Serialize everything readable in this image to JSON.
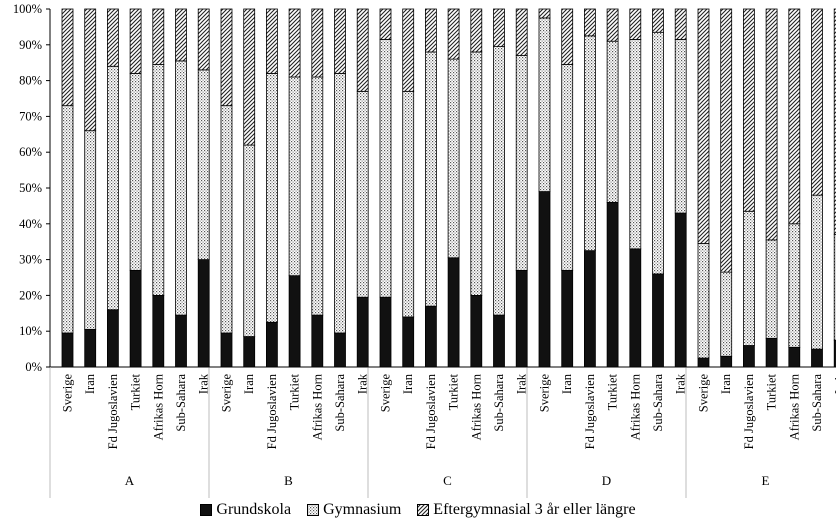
{
  "chart_data": {
    "type": "bar",
    "stacked": true,
    "normalized": true,
    "title": "",
    "xlabel": "",
    "ylabel": "",
    "ylim": [
      0,
      100
    ],
    "y_ticks": [
      "0%",
      "10%",
      "20%",
      "30%",
      "40%",
      "50%",
      "60%",
      "70%",
      "80%",
      "90%",
      "100%"
    ],
    "grid": false,
    "legend_position": "bottom",
    "groups": [
      "A",
      "B",
      "C",
      "D",
      "E"
    ],
    "categories": [
      "Sverige",
      "Iran",
      "Fd Jugoslavien",
      "Turkiet",
      "Afrikas Horn",
      "Sub-Sahara",
      "Irak"
    ],
    "series": [
      {
        "name": "Grundskola",
        "pattern": "solid",
        "color": "#111111",
        "values": [
          [
            9.5,
            10.5,
            16,
            27,
            20,
            14.5,
            30
          ],
          [
            9.5,
            8.5,
            12.5,
            25.5,
            14.5,
            9.5,
            19.5
          ],
          [
            19.5,
            14,
            17,
            30.5,
            20,
            14.5,
            27
          ],
          [
            49,
            27,
            32.5,
            46,
            33,
            26,
            43
          ],
          [
            2.5,
            3,
            6,
            8,
            5.5,
            5,
            7.5
          ]
        ]
      },
      {
        "name": "Gymnasium",
        "pattern": "dotted",
        "color": "#bdbdbd",
        "values": [
          [
            63.5,
            55.5,
            68,
            55,
            64.5,
            71,
            53
          ],
          [
            63.5,
            53.5,
            69.5,
            55.5,
            66.5,
            72.5,
            57.5
          ],
          [
            72,
            63,
            71,
            55.5,
            68,
            75,
            60
          ],
          [
            48.5,
            57.5,
            60,
            45,
            58.5,
            67.5,
            48.5
          ],
          [
            32,
            23.5,
            37.5,
            27.5,
            34.5,
            43,
            29.5
          ]
        ]
      },
      {
        "name": "Eftergymnasial 3 år eller längre",
        "pattern": "hatched",
        "color": "#555555",
        "values": [
          [
            27,
            34,
            16,
            18,
            15.5,
            14.5,
            17
          ],
          [
            27,
            38,
            18,
            19,
            19,
            18,
            23
          ],
          [
            8.5,
            23,
            12,
            14,
            12,
            10.5,
            13
          ],
          [
            2.5,
            15.5,
            7.5,
            9,
            8.5,
            6.5,
            8.5
          ],
          [
            65.5,
            73.5,
            56.5,
            64.5,
            60,
            52,
            63
          ]
        ]
      }
    ]
  }
}
